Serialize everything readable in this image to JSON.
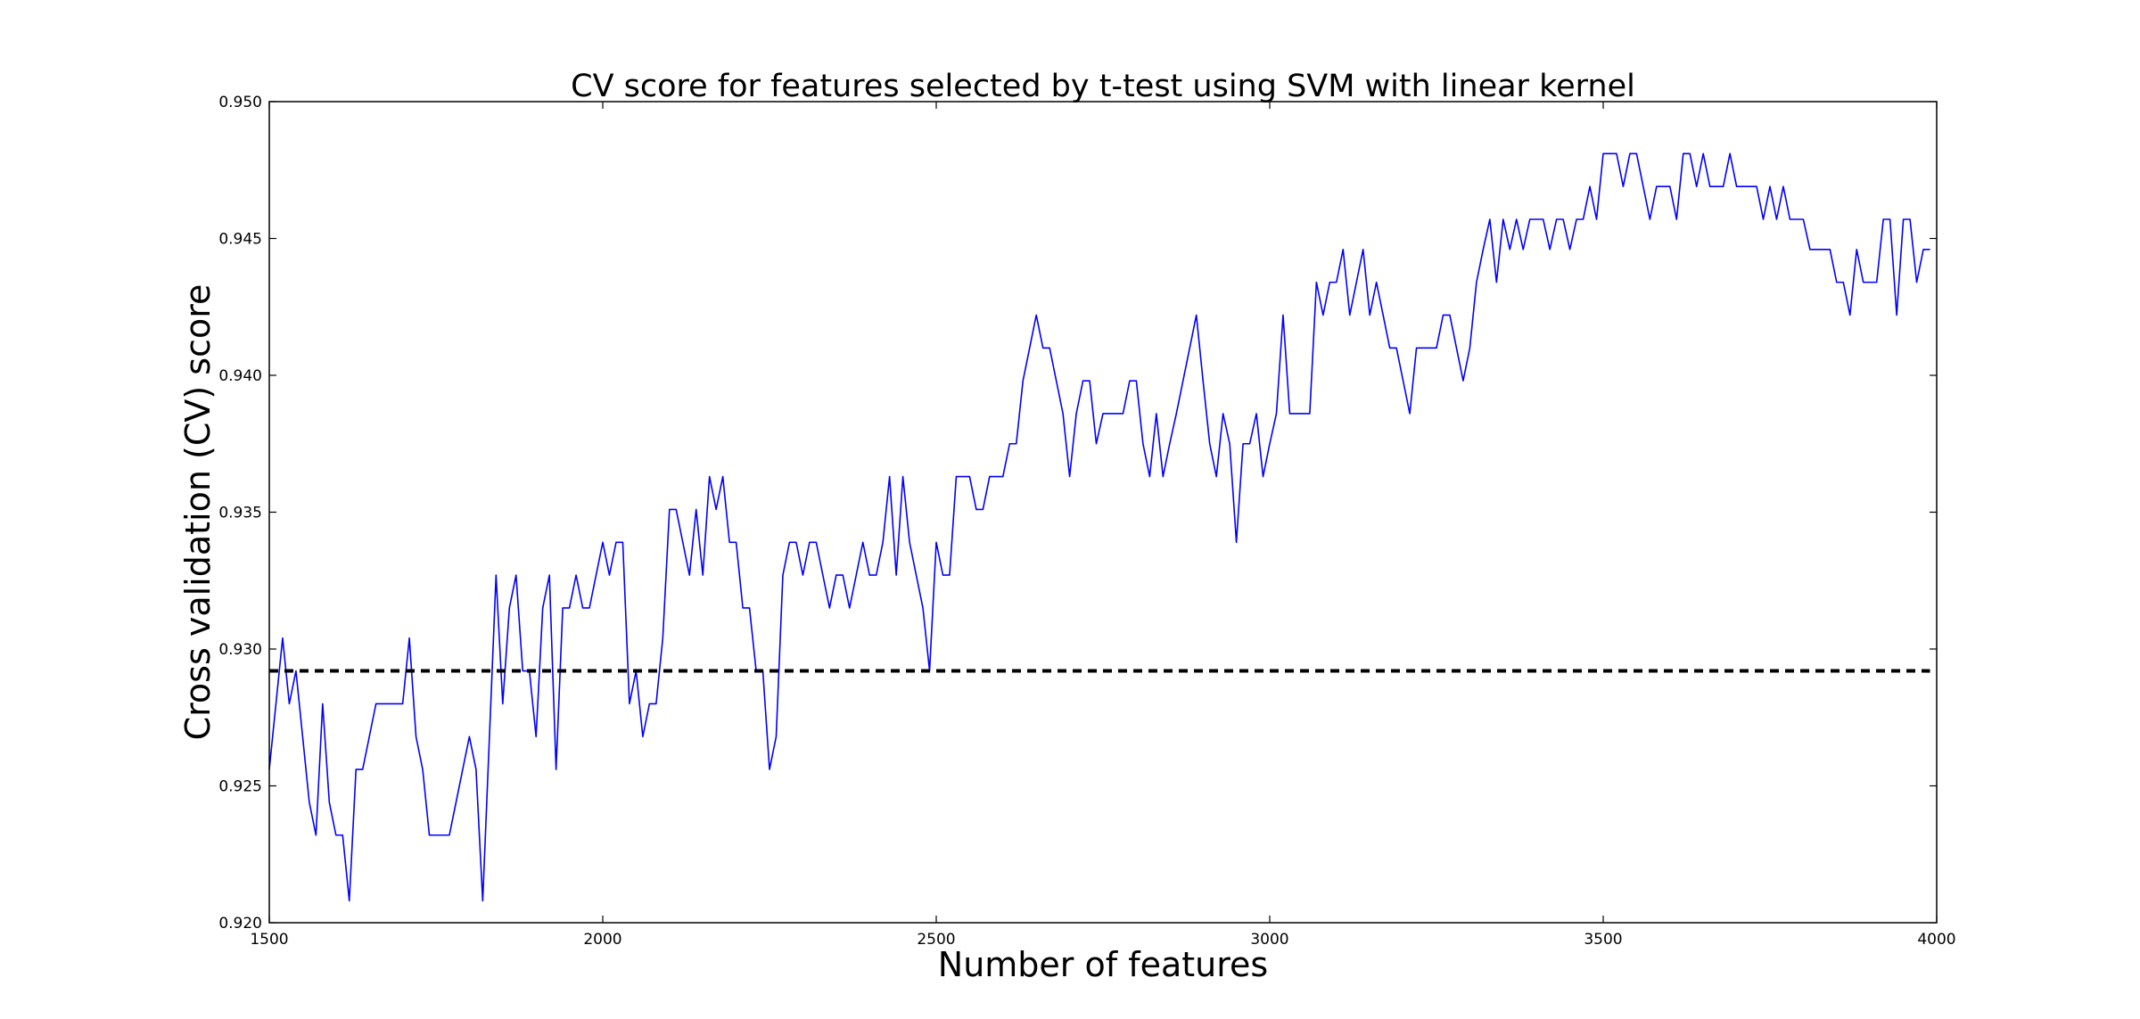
{
  "chart_data": {
    "type": "line",
    "title": "CV score for features selected by t-test using SVM with linear kernel",
    "xlabel": "Number of features",
    "ylabel": "Cross validation (CV) score",
    "xlim": [
      1500,
      4000
    ],
    "ylim": [
      0.92,
      0.95
    ],
    "xticks": [
      "1500",
      "2000",
      "2500",
      "3000",
      "3500",
      "4000"
    ],
    "yticks": [
      "0.920",
      "0.925",
      "0.930",
      "0.935",
      "0.940",
      "0.945",
      "0.950"
    ],
    "grid": false,
    "legend": "none",
    "series": [
      {
        "type": "solid",
        "color": "#0000ff",
        "x": [
          1500,
          1520,
          1530,
          1540,
          1550,
          1560,
          1570,
          1580,
          1590,
          1600,
          1610,
          1620,
          1630,
          1640,
          1650,
          1660,
          1680,
          1700,
          1710,
          1720,
          1730,
          1740,
          1760,
          1770,
          1780,
          1800,
          1810,
          1820,
          1840,
          1850,
          1860,
          1870,
          1880,
          1890,
          1900,
          1910,
          1920,
          1930,
          1940,
          1950,
          1960,
          1970,
          1980,
          1990,
          2000,
          2010,
          2020,
          2030,
          2040,
          2050,
          2060,
          2070,
          2080,
          2090,
          2100,
          2110,
          2120,
          2130,
          2140,
          2150,
          2160,
          2170,
          2180,
          2190,
          2200,
          2210,
          2220,
          2230,
          2240,
          2250,
          2260,
          2270,
          2280,
          2290,
          2300,
          2310,
          2320,
          2330,
          2340,
          2350,
          2360,
          2370,
          2380,
          2390,
          2400,
          2410,
          2420,
          2430,
          2440,
          2450,
          2460,
          2470,
          2480,
          2490,
          2500,
          2510,
          2520,
          2530,
          2540,
          2550,
          2560,
          2570,
          2580,
          2590,
          2600,
          2610,
          2620,
          2630,
          2640,
          2650,
          2660,
          2670,
          2680,
          2690,
          2700,
          2710,
          2720,
          2730,
          2740,
          2750,
          2760,
          2770,
          2780,
          2790,
          2800,
          2810,
          2820,
          2830,
          2840,
          2850,
          2860,
          2870,
          2880,
          2890,
          2900,
          2910,
          2920,
          2930,
          2940,
          2950,
          2960,
          2970,
          2980,
          2990,
          3000,
          3010,
          3020,
          3030,
          3040,
          3050,
          3060,
          3070,
          3080,
          3090,
          3100,
          3110,
          3120,
          3130,
          3140,
          3150,
          3160,
          3170,
          3180,
          3190,
          3200,
          3210,
          3220,
          3230,
          3240,
          3250,
          3260,
          3270,
          3280,
          3290,
          3300,
          3310,
          3320,
          3330,
          3340,
          3350,
          3360,
          3370,
          3380,
          3390,
          3400,
          3410,
          3420,
          3430,
          3440,
          3450,
          3460,
          3470,
          3480,
          3490,
          3500,
          3510,
          3520,
          3530,
          3540,
          3550,
          3560,
          3570,
          3580,
          3590,
          3600,
          3610,
          3620,
          3630,
          3640,
          3650,
          3660,
          3670,
          3680,
          3690,
          3700,
          3710,
          3720,
          3730,
          3740,
          3750,
          3760,
          3770,
          3780,
          3790,
          3800,
          3810,
          3820,
          3830,
          3840,
          3850,
          3860,
          3870,
          3880,
          3890,
          3900,
          3910,
          3920,
          3930,
          3940,
          3950,
          3960,
          3970,
          3980,
          3990
        ],
        "y": [
          0.9256,
          0.9304,
          0.928,
          0.9292,
          0.9268,
          0.9244,
          0.9232,
          0.928,
          0.9244,
          0.9232,
          0.9232,
          0.9208,
          0.9256,
          0.9256,
          0.9268,
          0.928,
          0.928,
          0.928,
          0.9304,
          0.9268,
          0.9256,
          0.9232,
          0.9232,
          0.9232,
          0.9244,
          0.9268,
          0.9256,
          0.9208,
          0.9327,
          0.928,
          0.9315,
          0.9327,
          0.9292,
          0.9292,
          0.9268,
          0.9315,
          0.9327,
          0.9256,
          0.9315,
          0.9315,
          0.9327,
          0.9315,
          0.9315,
          0.9327,
          0.9339,
          0.9327,
          0.9339,
          0.9339,
          0.928,
          0.9292,
          0.9268,
          0.928,
          0.928,
          0.9304,
          0.9351,
          0.9351,
          0.9339,
          0.9327,
          0.9351,
          0.9327,
          0.9363,
          0.9351,
          0.9363,
          0.9339,
          0.9339,
          0.9315,
          0.9315,
          0.9292,
          0.9292,
          0.9256,
          0.9268,
          0.9327,
          0.9339,
          0.9339,
          0.9327,
          0.9339,
          0.9339,
          0.9327,
          0.9315,
          0.9327,
          0.9327,
          0.9315,
          0.9327,
          0.9339,
          0.9327,
          0.9327,
          0.9339,
          0.9363,
          0.9327,
          0.9363,
          0.9339,
          0.9327,
          0.9315,
          0.9292,
          0.9339,
          0.9327,
          0.9327,
          0.9363,
          0.9363,
          0.9363,
          0.9351,
          0.9351,
          0.9363,
          0.9363,
          0.9363,
          0.9375,
          0.9375,
          0.9398,
          0.941,
          0.9422,
          0.941,
          0.941,
          0.9398,
          0.9386,
          0.9363,
          0.9386,
          0.9398,
          0.9398,
          0.9375,
          0.9386,
          0.9386,
          0.9386,
          0.9386,
          0.9398,
          0.9398,
          0.9375,
          0.9363,
          0.9386,
          0.9363,
          0.9375,
          0.9386,
          0.9398,
          0.941,
          0.9422,
          0.9398,
          0.9375,
          0.9363,
          0.9386,
          0.9375,
          0.9339,
          0.9375,
          0.9375,
          0.9386,
          0.9363,
          0.9375,
          0.9386,
          0.9422,
          0.9386,
          0.9386,
          0.9386,
          0.9386,
          0.9434,
          0.9422,
          0.9434,
          0.9434,
          0.9446,
          0.9422,
          0.9434,
          0.9446,
          0.9422,
          0.9434,
          0.9422,
          0.941,
          0.941,
          0.9398,
          0.9386,
          0.941,
          0.941,
          0.941,
          0.941,
          0.9422,
          0.9422,
          0.941,
          0.9398,
          0.941,
          0.9434,
          0.9446,
          0.9457,
          0.9434,
          0.9457,
          0.9446,
          0.9457,
          0.9446,
          0.9457,
          0.9457,
          0.9457,
          0.9446,
          0.9457,
          0.9457,
          0.9446,
          0.9457,
          0.9457,
          0.9469,
          0.9457,
          0.9481,
          0.9481,
          0.9481,
          0.9469,
          0.9481,
          0.9481,
          0.9469,
          0.9457,
          0.9469,
          0.9469,
          0.9469,
          0.9457,
          0.9481,
          0.9481,
          0.9469,
          0.9481,
          0.9469,
          0.9469,
          0.9469,
          0.9481,
          0.9469,
          0.9469,
          0.9469,
          0.9469,
          0.9457,
          0.9469,
          0.9457,
          0.9469,
          0.9457,
          0.9457,
          0.9457,
          0.9446,
          0.9446,
          0.9446,
          0.9446,
          0.9434,
          0.9434,
          0.9422,
          0.9446,
          0.9434,
          0.9434,
          0.9434,
          0.9457,
          0.9457,
          0.9422,
          0.9457,
          0.9457,
          0.9434,
          0.9446,
          0.9446
        ]
      },
      {
        "type": "dashed",
        "color": "#000000",
        "x": [
          1500,
          3990
        ],
        "y": [
          0.9292,
          0.9292
        ]
      }
    ]
  }
}
